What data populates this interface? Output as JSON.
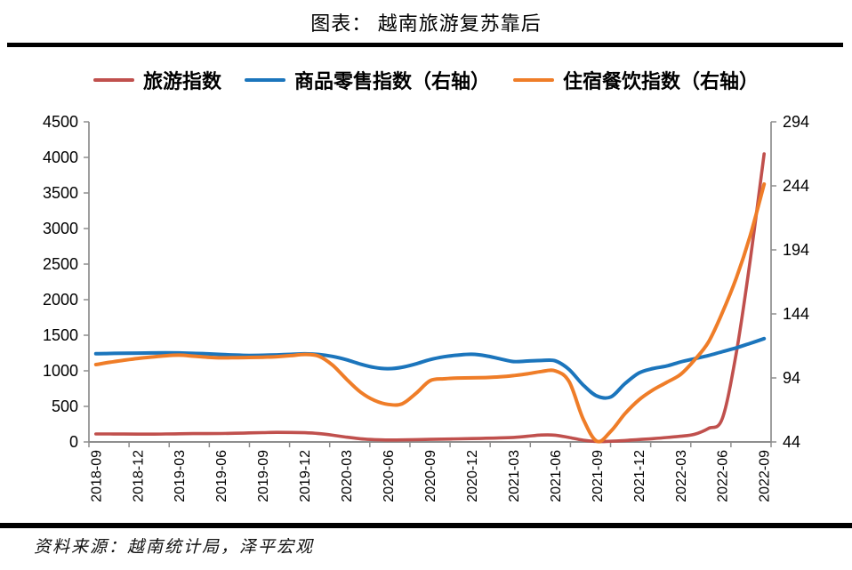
{
  "page": {
    "title": "图表：  越南旅游复苏靠后",
    "source_note": "资料来源：越南统计局，泽平宏观"
  },
  "chart_data": {
    "type": "line",
    "title": "图表： 越南旅游复苏靠后",
    "grid": false,
    "legend_position": "top",
    "x_tick_labels": [
      "2018-09",
      "2018-12",
      "2019-03",
      "2019-06",
      "2019-09",
      "2019-12",
      "2020-03",
      "2020-06",
      "2020-09",
      "2020-12",
      "2021-03",
      "2021-06",
      "2021-09",
      "2021-12",
      "2022-03",
      "2022-06",
      "2022-09"
    ],
    "x_months": [
      "2018-09",
      "2018-10",
      "2018-11",
      "2018-12",
      "2019-01",
      "2019-02",
      "2019-03",
      "2019-04",
      "2019-05",
      "2019-06",
      "2019-07",
      "2019-08",
      "2019-09",
      "2019-10",
      "2019-11",
      "2019-12",
      "2020-01",
      "2020-02",
      "2020-03",
      "2020-04",
      "2020-05",
      "2020-06",
      "2020-07",
      "2020-08",
      "2020-09",
      "2020-10",
      "2020-11",
      "2020-12",
      "2021-01",
      "2021-02",
      "2021-03",
      "2021-04",
      "2021-05",
      "2021-06",
      "2021-07",
      "2021-08",
      "2021-09",
      "2021-10",
      "2021-11",
      "2021-12",
      "2022-01",
      "2022-02",
      "2022-03",
      "2022-04",
      "2022-05",
      "2022-06",
      "2022-07",
      "2022-08",
      "2022-09"
    ],
    "left_axis": {
      "min": 0,
      "max": 4500,
      "step": 500,
      "tick_labels": [
        "0",
        "500",
        "1000",
        "1500",
        "2000",
        "2500",
        "3000",
        "3500",
        "4000",
        "4500"
      ]
    },
    "right_axis": {
      "min": 44,
      "max": 294,
      "step": 50,
      "tick_labels": [
        "44",
        "94",
        "144",
        "194",
        "244",
        "294"
      ]
    },
    "series": [
      {
        "name": "旅游指数",
        "axis": "left",
        "color": "#C0504D",
        "values": [
          112,
          112,
          111,
          110,
          110,
          112,
          115,
          117,
          118,
          119,
          122,
          127,
          131,
          135,
          134,
          130,
          118,
          95,
          68,
          45,
          33,
          27,
          29,
          32,
          36,
          40,
          44,
          48,
          52,
          57,
          64,
          80,
          98,
          95,
          62,
          25,
          6,
          10,
          20,
          34,
          46,
          62,
          80,
          108,
          190,
          330,
          1250,
          2550,
          4050
        ]
      },
      {
        "name": "商品零售指数（右轴）",
        "axis": "right",
        "color": "#1B75BC",
        "values": [
          112.9,
          113.1,
          113.3,
          113.4,
          113.5,
          113.6,
          113.5,
          113.2,
          112.8,
          112.3,
          111.9,
          111.6,
          111.7,
          112.0,
          112.4,
          112.8,
          112.3,
          110.8,
          108.2,
          104.8,
          102.2,
          101.2,
          102.3,
          105.0,
          108.3,
          110.5,
          111.8,
          112.5,
          111.3,
          109.0,
          106.8,
          107.2,
          107.6,
          107.3,
          100.5,
          88.5,
          79.8,
          79.2,
          89.5,
          97.8,
          101.3,
          103.3,
          106.5,
          109.0,
          111.5,
          114.5,
          117.5,
          121.0,
          124.7
        ]
      },
      {
        "name": "住宿餐饮指数（右轴）",
        "axis": "right",
        "color": "#EF7D28",
        "values": [
          104.4,
          106.2,
          107.8,
          109.2,
          110.3,
          111.3,
          111.8,
          111.0,
          110.2,
          109.7,
          109.8,
          110.0,
          110.2,
          110.6,
          111.4,
          112.3,
          111.0,
          104.0,
          93.0,
          83.0,
          76.5,
          73.3,
          73.8,
          82.0,
          91.8,
          93.3,
          93.9,
          94.1,
          94.3,
          94.8,
          95.8,
          97.2,
          99.0,
          99.5,
          91.0,
          62.0,
          44.5,
          52.5,
          66.0,
          76.8,
          84.5,
          90.5,
          96.8,
          108.0,
          122.0,
          145.0,
          172.0,
          205.0,
          245.3
        ]
      }
    ],
    "axis_color": "#8E8E8E"
  }
}
